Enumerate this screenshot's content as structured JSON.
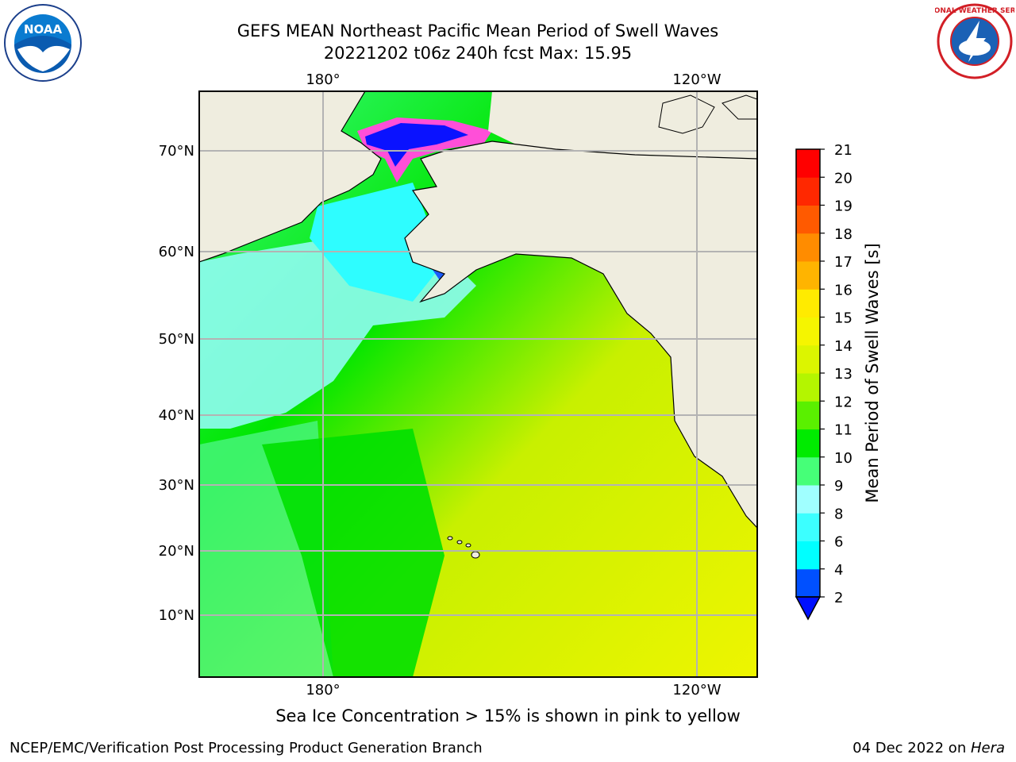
{
  "header": {
    "title_line1": "GEFS MEAN Northeast Pacific Mean Period of Swell Waves",
    "title_line2": "20221202 t06z 240h fcst   Max: 15.95"
  },
  "logos": {
    "left": {
      "icon": "noaa-logo",
      "text": "NOAA"
    },
    "right": {
      "icon": "nws-logo",
      "text": "NATIONAL WEATHER SERVICE"
    }
  },
  "map": {
    "lon_labels": [
      "180°",
      "120°W"
    ],
    "lat_labels": [
      "70°N",
      "60°N",
      "50°N",
      "40°N",
      "30°N",
      "20°N",
      "10°N"
    ],
    "colors": {
      "land": "#efeddf",
      "grid": "#b3b3b3",
      "ocean_north": "#3cfa82",
      "ocean_mid": "#00e400",
      "ocean_south": "#e6f500",
      "swell_low": "#9ffff0",
      "sea_ice": "#ff3cd2",
      "deep_blue": "#0a12ff"
    }
  },
  "colorbar": {
    "label": "Mean Period of Swell Waves [s]",
    "ticks": [
      "2",
      "4",
      "6",
      "8",
      "9",
      "10",
      "11",
      "12",
      "13",
      "14",
      "15",
      "16",
      "17",
      "18",
      "19",
      "20",
      "21"
    ],
    "colors": [
      "#0050ff",
      "#00ffff",
      "#3cffff",
      "#a0ffff",
      "#46ff78",
      "#00eb00",
      "#5af000",
      "#b4f500",
      "#dcf500",
      "#f5f500",
      "#ffeb00",
      "#ffb400",
      "#ff8c00",
      "#ff5a00",
      "#ff2800",
      "#ff0000"
    ],
    "under_color": "#0010ff"
  },
  "footer": {
    "note": "Sea Ice Concentration > 15% is shown in pink to yellow",
    "credit": "NCEP/EMC/Verification Post Processing Product Generation Branch",
    "date": "04 Dec 2022 on ",
    "machine": "Hera"
  }
}
